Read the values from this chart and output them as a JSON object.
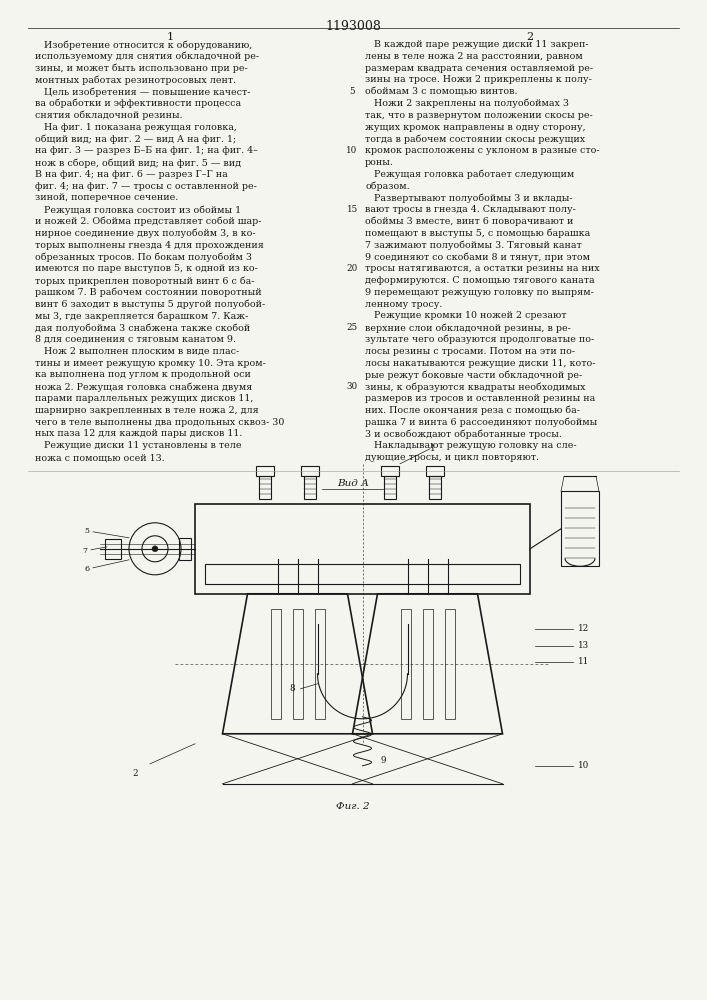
{
  "page_number": "1193008",
  "background_color": "#f5f5f0",
  "text_color": "#1a1a1a",
  "font_size_body": 6.8,
  "font_size_heading": 8.0,
  "col1_lines": [
    "   Изобретение относится к оборудованию,",
    "используемому для снятия обкладочной ре-",
    "зины, и может быть использовано при ре-",
    "монтных работах резинотросовых лент.",
    "   Цель изобретения — повышение качест-",
    "ва обработки и эффективности процесса",
    "снятия обкладочной резины.",
    "   На фиг. 1 показана режущая головка,",
    "общий вид; на фиг. 2 — вид А на фиг. 1;",
    "на фиг. 3 — разрез Б–Б на фиг. 1; на фиг. 4–",
    "нож в сборе, общий вид; на фиг. 5 — вид",
    "В на фиг. 4; на фиг. 6 — разрез Г–Г на",
    "фиг. 4; на фиг. 7 — тросы с оставленной ре-",
    "зиной, поперечное сечение.",
    "   Режущая головка состоит из обоймы 1",
    "и ножей 2. Обойма представляет собой шар-",
    "нирное соединение двух полуобойм 3, в ко-",
    "торых выполнены гнезда 4 для прохождения",
    "обрезанных тросов. По бокам полуобойм 3",
    "имеются по паре выступов 5, к одной из ко-",
    "торых прикреплен поворотный винт 6 с ба-",
    "рашком 7. В рабочем состоянии поворотный",
    "винт 6 заходит в выступы 5 другой полуобой-",
    "мы 3, где закрепляется барашком 7. Каж-",
    "дая полуобойма 3 снабжена также скобой",
    "8 для соединения с тяговым канатом 9.",
    "   Нож 2 выполнен плоским в виде плас-",
    "тины и имеет режущую кромку 10. Эта кром-",
    "ка выполнена под углом к продольной оси",
    "ножа 2. Режущая головка снабжена двумя",
    "парами параллельных режущих дисков 11,",
    "шарнирно закрепленных в теле ножа 2, для",
    "чего в теле выполнены два продольных сквоз- 30",
    "ных паза 12 для каждой пары дисков 11.",
    "   Режущие диски 11 установлены в теле",
    "ножа с помощью осей 13."
  ],
  "col2_lines": [
    "   В каждой паре режущие диски 11 закреп-",
    "лены в теле ножа 2 на расстоянии, равном",
    "размерам квадрата сечения оставляемой ре-",
    "зины на тросе. Ножи 2 прикреплены к полу-",
    "обоймам 3 с помощью винтов.",
    "   Ножи 2 закреплены на полуобоймах 3",
    "так, что в развернутом положении скосы ре-",
    "жущих кромок направлены в одну сторону,",
    "тогда в рабочем состоянии скосы режущих",
    "кромок расположены с уклоном в разные сто-",
    "роны.",
    "   Режущая головка работает следующим",
    "образом.",
    "   Развертывают полуобоймы 3 и вклады-",
    "вают тросы в гнезда 4. Складывают полу-",
    "обоймы 3 вместе, винт 6 поворачивают и",
    "помещают в выступы 5, с помощью барашка",
    "7 зажимают полуобоймы 3. Тяговый канат",
    "9 соединяют со скобами 8 и тянут, при этом",
    "тросы натягиваются, а остатки резины на них",
    "деформируются. С помощью тягового каната",
    "9 перемещают режущую головку по выпрям-",
    "ленному тросу.",
    "   Режущие кромки 10 ножей 2 срезают",
    "верхние слои обкладочной резины, в ре-",
    "зультате чего образуются продолговатые по-",
    "лосы резины с тросами. Потом на эти по-",
    "лосы накатываются режущие диски 11, кото-",
    "рые режут боковые части обкладочной ре-",
    "зины, к образуются квадраты необходимых",
    "размеров из тросов и оставленной резины на",
    "них. После окончания реза с помощью ба-",
    "рашка 7 и винта 6 рассоединяют полуобоймы",
    "3 и освобождают обработанные тросы.",
    "   Накладывают режущую головку на сле-",
    "дующие тросы, и цикл повторяют."
  ],
  "vid_a_label": "Вид А",
  "fig2_label": "Фиг. 2"
}
